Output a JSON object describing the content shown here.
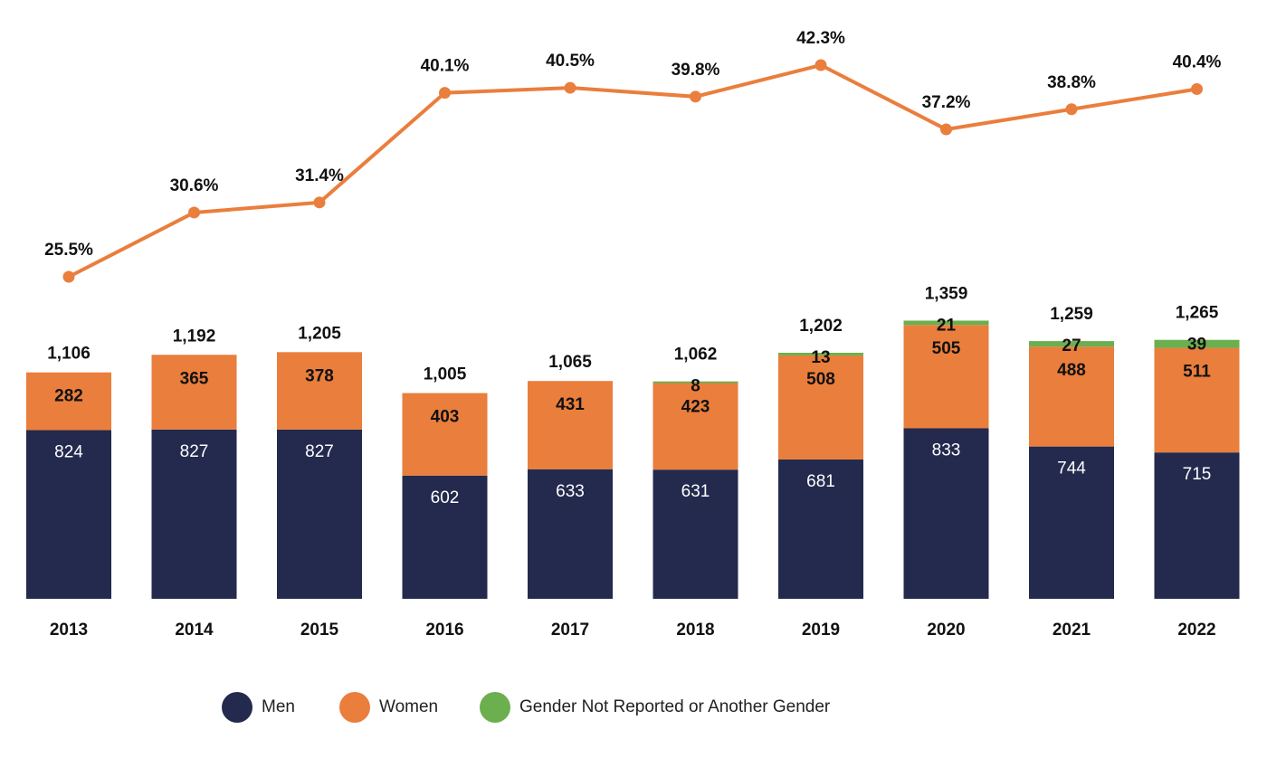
{
  "chart_data": {
    "type": "bar",
    "stacked": true,
    "categories": [
      "2013",
      "2014",
      "2015",
      "2016",
      "2017",
      "2018",
      "2019",
      "2020",
      "2021",
      "2022"
    ],
    "series": [
      {
        "name": "Men",
        "color": "#232A4E",
        "values": [
          824,
          827,
          827,
          602,
          633,
          631,
          681,
          833,
          744,
          715
        ]
      },
      {
        "name": "Women",
        "color": "#EA7E3C",
        "values": [
          282,
          365,
          378,
          403,
          431,
          423,
          508,
          505,
          488,
          511
        ]
      },
      {
        "name": "Gender Not Reported or Another Gender",
        "color": "#6BAF4E",
        "values": [
          null,
          null,
          null,
          null,
          null,
          8,
          13,
          21,
          27,
          39
        ]
      }
    ],
    "totals": [
      "1,106",
      "1,192",
      "1,205",
      "1,005",
      "1,065",
      "1,062",
      "1,202",
      "1,359",
      "1,259",
      "1,265"
    ],
    "line": {
      "color": "#EA7E3C",
      "values": [
        25.5,
        30.6,
        31.4,
        40.1,
        40.5,
        39.8,
        42.3,
        37.2,
        38.8,
        40.4
      ],
      "labels": [
        "25.5%",
        "30.6%",
        "31.4%",
        "40.1%",
        "40.5%",
        "39.8%",
        "42.3%",
        "37.2%",
        "38.8%",
        "40.4%"
      ]
    },
    "legend_position": "bottom",
    "grid": false
  }
}
